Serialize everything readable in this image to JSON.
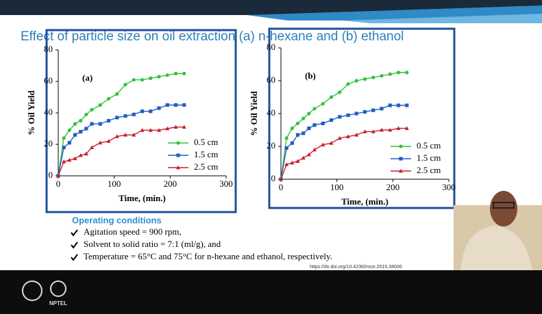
{
  "slide": {
    "title": "Effect of particle size on oil extraction (a) n-hexane and (b) ethanol",
    "conditions": {
      "heading": "Operating conditions",
      "items": [
        "Agitation speed = 900 rpm,",
        "Solvent to solid ratio = 7:1 (ml/g), and",
        "Temperature = 65°C and 75°C for n-hexane and ethanol, respectively."
      ]
    },
    "doi": "https://dx.doi.org/10.4236/irsce.2015.38006"
  },
  "footer": {
    "logo_text": "NPTEL"
  },
  "chart_data": [
    {
      "type": "line",
      "title": "(a)",
      "xlabel": "Time, (min.)",
      "ylabel": "% Oil Yield",
      "xlim": [
        0,
        300
      ],
      "ylim": [
        0,
        80
      ],
      "xticks": [
        0,
        100,
        200,
        300
      ],
      "yticks": [
        0,
        20,
        40,
        60,
        80
      ],
      "x": [
        0,
        10,
        20,
        30,
        40,
        50,
        60,
        75,
        90,
        105,
        120,
        135,
        150,
        165,
        180,
        195,
        210,
        225
      ],
      "series": [
        {
          "name": "0.5 cm",
          "color": "#2ec43a",
          "marker": "circle",
          "values": [
            0,
            24,
            29,
            33,
            35,
            39,
            42,
            45,
            49,
            52,
            58,
            61,
            61,
            62,
            63,
            64,
            65,
            65
          ]
        },
        {
          "name": "1.5 cm",
          "color": "#1f5fc4",
          "marker": "square",
          "values": [
            0,
            18,
            21,
            26,
            28,
            30,
            33,
            33,
            35,
            37,
            38,
            39,
            41,
            41,
            43,
            45,
            45,
            45
          ]
        },
        {
          "name": "2.5 cm",
          "color": "#c8202a",
          "marker": "triangle",
          "values": [
            0,
            9,
            10,
            11,
            13,
            14,
            18,
            21,
            22,
            25,
            26,
            26,
            29,
            29,
            29,
            30,
            31,
            31
          ]
        }
      ]
    },
    {
      "type": "line",
      "title": "(b)",
      "xlabel": "Time, (min.)",
      "ylabel": "% Oil Yield",
      "xlim": [
        0,
        300
      ],
      "ylim": [
        0,
        80
      ],
      "xticks": [
        0,
        100,
        200,
        300
      ],
      "yticks": [
        0,
        20,
        40,
        60,
        80
      ],
      "x": [
        0,
        10,
        20,
        30,
        40,
        50,
        60,
        75,
        90,
        105,
        120,
        135,
        150,
        165,
        180,
        195,
        210,
        225
      ],
      "series": [
        {
          "name": "0.5 cm",
          "color": "#2ec43a",
          "marker": "circle",
          "values": [
            0,
            25,
            31,
            34,
            37,
            40,
            43,
            46,
            50,
            53,
            58,
            60,
            61,
            62,
            63,
            64,
            65,
            65
          ]
        },
        {
          "name": "1.5 cm",
          "color": "#1f5fc4",
          "marker": "square",
          "values": [
            0,
            19,
            22,
            27,
            28,
            31,
            33,
            34,
            36,
            38,
            39,
            40,
            41,
            42,
            43,
            45,
            45,
            45
          ]
        },
        {
          "name": "2.5 cm",
          "color": "#c8202a",
          "marker": "triangle",
          "values": [
            0,
            9,
            10,
            11,
            13,
            15,
            18,
            21,
            22,
            25,
            26,
            27,
            29,
            29,
            30,
            30,
            31,
            31
          ]
        }
      ]
    }
  ]
}
